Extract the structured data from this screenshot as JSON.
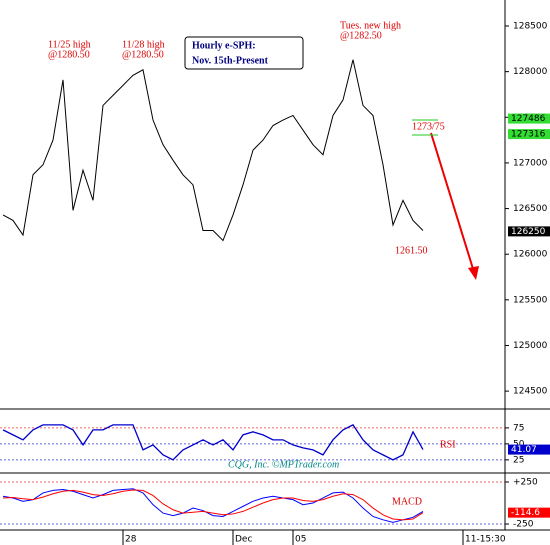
{
  "chart_data": [
    {
      "type": "line",
      "title": [
        "Hourly e-SPH:",
        "Nov. 15th-Present"
      ],
      "color": "#000000",
      "categories": [
        null,
        null,
        null,
        null,
        null,
        null,
        null,
        null,
        null,
        null,
        null,
        null,
        "28",
        null,
        null,
        null,
        null,
        null,
        null,
        null,
        null,
        null,
        null,
        "Dec",
        null,
        null,
        null,
        null,
        null,
        "05",
        null,
        null,
        null,
        null,
        null,
        null,
        null,
        null,
        null,
        null,
        null,
        null,
        null,
        null,
        null,
        null,
        "11-15:30",
        null,
        null,
        null,
        null
      ],
      "values": [
        126430,
        126370,
        126210,
        126870,
        126980,
        127250,
        127910,
        126480,
        126920,
        126590,
        127630,
        127740,
        127850,
        127960,
        128020,
        127470,
        127200,
        127030,
        126870,
        126760,
        126260,
        126260,
        126150,
        126430,
        126760,
        127140,
        127250,
        127410,
        127470,
        127520,
        127360,
        127200,
        127090,
        127520,
        127690,
        128130,
        127630,
        127520,
        126980,
        126320,
        126590,
        126370,
        126260,
        null,
        null,
        null,
        null,
        null,
        null,
        null,
        null
      ],
      "ylim": [
        124315,
        128785
      ],
      "yticks": [
        124500,
        125000,
        125500,
        126000,
        126500,
        127000,
        127500,
        128000,
        128500
      ],
      "annotations": [
        {
          "lines": [
            "11/25 high",
            "@1280.50"
          ]
        },
        {
          "lines": [
            "11/28 high",
            "@1280.50"
          ]
        },
        {
          "lines": [
            "Tues. new high",
            "@1282.50"
          ]
        },
        {
          "lines": [
            "1273/75"
          ]
        },
        {
          "lines": [
            "1261.50"
          ]
        }
      ],
      "markers": [
        {
          "value": 127486,
          "color": "#33dd33"
        },
        {
          "value": 127316,
          "color": "#33dd33"
        },
        {
          "value": 126250,
          "color": "#000000"
        }
      ]
    },
    {
      "type": "line",
      "title": "RSI",
      "credit": "CQG, Inc. ©MPTrader.com",
      "color": "#0000cc",
      "values": [
        71.9,
        64.1,
        56.3,
        71.9,
        79.7,
        79.7,
        79.7,
        71.9,
        48.4,
        71.9,
        71.9,
        79.7,
        79.7,
        79.7,
        40.6,
        48.4,
        32.8,
        25,
        40.6,
        48.4,
        56.3,
        48.4,
        56.3,
        40.6,
        64.1,
        68.8,
        64.1,
        56.3,
        56.3,
        48.4,
        43.8,
        40.6,
        32.8,
        56.3,
        71.9,
        79.7,
        56.3,
        40.6,
        32.8,
        25,
        32.8,
        68.8,
        41.07,
        null,
        null,
        null,
        null,
        null,
        null,
        null,
        null
      ],
      "ylim": [
        6,
        103
      ],
      "yticks": [
        25,
        50,
        75
      ],
      "markers": [
        {
          "value": 41.07,
          "color": "#0000cc"
        }
      ]
    },
    {
      "type": "line",
      "title": "MACD",
      "series": [
        {
          "color": "#0000ff",
          "values": [
            80,
            60,
            20,
            40,
            120,
            150,
            160,
            140,
            100,
            60,
            100,
            150,
            160,
            170,
            120,
            -20,
            -120,
            -150,
            -120,
            -60,
            -90,
            -150,
            -160,
            -100,
            -40,
            20,
            60,
            80,
            60,
            40,
            -20,
            0,
            60,
            120,
            130,
            60,
            -60,
            -160,
            -200,
            -230,
            -200,
            -170,
            -100,
            null,
            null,
            null,
            null,
            null,
            null,
            null,
            null
          ]
        },
        {
          "color": "#ff0000",
          "values": [
            60,
            65,
            50,
            40,
            70,
            110,
            140,
            150,
            130,
            100,
            90,
            110,
            140,
            155,
            150,
            90,
            -10,
            -80,
            -120,
            -110,
            -100,
            -120,
            -140,
            -130,
            -100,
            -50,
            0,
            40,
            60,
            60,
            30,
            20,
            40,
            80,
            110,
            100,
            40,
            -60,
            -140,
            -190,
            -200,
            -190,
            -114.6,
            null,
            null,
            null,
            null,
            null,
            null,
            null,
            null
          ]
        }
      ],
      "ylim": [
        -321,
        345
      ],
      "yticks": [
        {
          "value": 250,
          "label": "+250"
        },
        -250
      ],
      "markers": [
        {
          "value": -114.6,
          "color": "#ff0000"
        }
      ]
    }
  ]
}
